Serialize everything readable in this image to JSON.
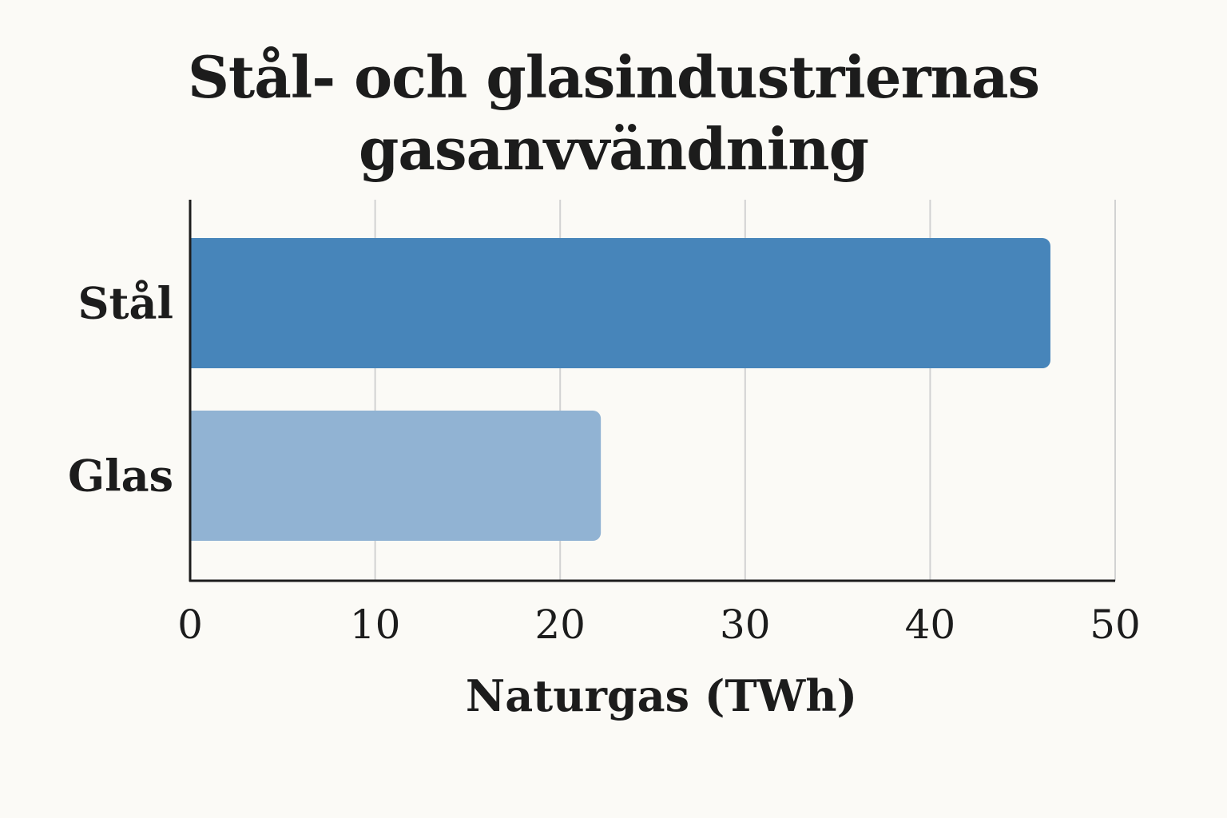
{
  "chart_data": {
    "type": "bar",
    "orientation": "horizontal",
    "title_lines": [
      "Stål- och glasindustriernas",
      "gasanvvändning"
    ],
    "categories": [
      "Stål",
      "Glas"
    ],
    "values": [
      46.5,
      22.2
    ],
    "bar_colors": [
      "#4785ba",
      "#91b3d3"
    ],
    "xlabel": "Naturgas (TWh)",
    "ylabel": "",
    "xlim": [
      0,
      50
    ],
    "xticks": [
      0,
      10,
      20,
      30,
      40,
      50
    ],
    "xtick_labels": [
      "0",
      "10",
      "20",
      "30",
      "40",
      "50"
    ],
    "grid": "vertical",
    "legend": "none"
  }
}
